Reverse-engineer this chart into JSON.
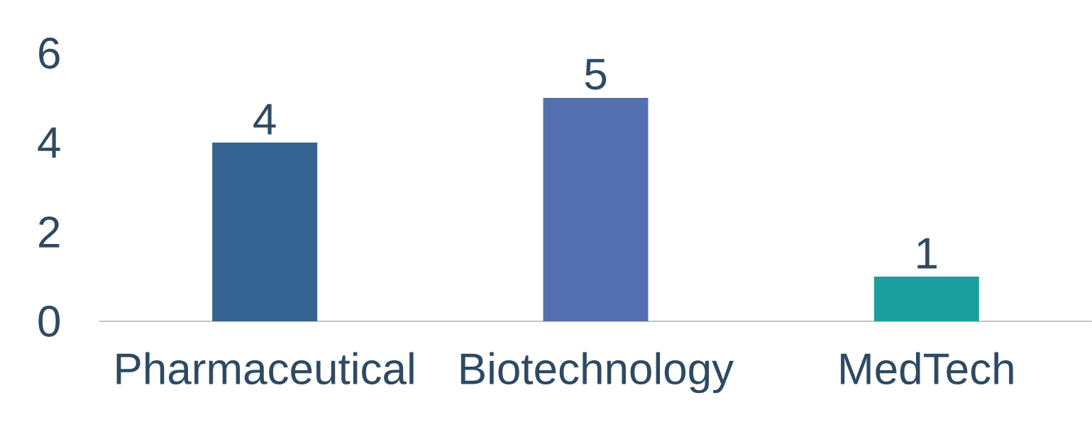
{
  "chart_data": {
    "type": "bar",
    "categories": [
      "Pharmaceutical",
      "Biotechnology",
      "MedTech"
    ],
    "values": [
      4,
      5,
      1
    ],
    "colors": [
      "#356391",
      "#5470b0",
      "#1b9e9e"
    ],
    "ylim": [
      0,
      6
    ],
    "yticks": [
      0,
      2,
      4,
      6
    ],
    "data_labels": true
  }
}
